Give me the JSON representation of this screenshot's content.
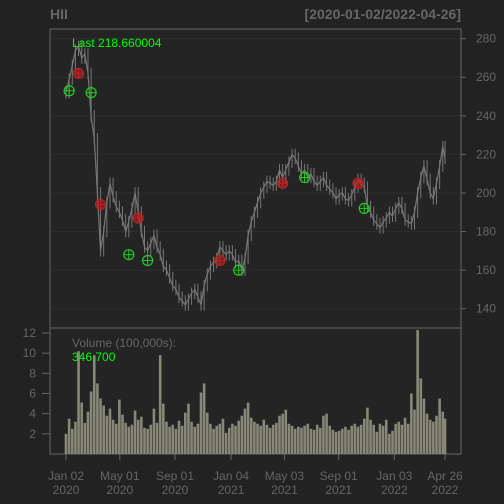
{
  "chart_data": {
    "type": "candlestick",
    "title_left": "HII",
    "title_right": "[2020-01-02/2022-04-26]",
    "last_label": "Last 218.660004",
    "volume_label": "Volume (100,000s):",
    "volume_value": "346,700",
    "price_axis": {
      "ylim": [
        130,
        285
      ],
      "ticks": [
        140,
        160,
        180,
        200,
        220,
        240,
        260,
        280
      ]
    },
    "volume_axis": {
      "ylim": [
        0,
        12.5
      ],
      "ticks": [
        2,
        4,
        6,
        8,
        10,
        12
      ]
    },
    "x_axis": {
      "ticks": [
        {
          "date": "2020-01-02",
          "label1": "Jan 02",
          "label2": "2020"
        },
        {
          "date": "2020-05-01",
          "label1": "May 01",
          "label2": "2020"
        },
        {
          "date": "2020-09-01",
          "label1": "Sep 01",
          "label2": "2020"
        },
        {
          "date": "2021-01-04",
          "label1": "Jan 04",
          "label2": "2021"
        },
        {
          "date": "2021-05-03",
          "label1": "May 03",
          "label2": "2021"
        },
        {
          "date": "2021-09-01",
          "label1": "Sep 01",
          "label2": "2021"
        },
        {
          "date": "2022-01-03",
          "label1": "Jan 03",
          "label2": "2022"
        },
        {
          "date": "2022-04-26",
          "label1": "Apr 26",
          "label2": "2022"
        }
      ]
    },
    "price_series": [
      [
        "2020-01-02",
        252
      ],
      [
        "2020-01-09",
        259
      ],
      [
        "2020-01-16",
        266
      ],
      [
        "2020-01-23",
        274
      ],
      [
        "2020-01-30",
        276
      ],
      [
        "2020-02-06",
        270
      ],
      [
        "2020-02-13",
        272
      ],
      [
        "2020-02-20",
        262
      ],
      [
        "2020-02-27",
        240
      ],
      [
        "2020-03-05",
        228
      ],
      [
        "2020-03-12",
        200
      ],
      [
        "2020-03-19",
        170
      ],
      [
        "2020-03-26",
        180
      ],
      [
        "2020-04-02",
        195
      ],
      [
        "2020-04-09",
        205
      ],
      [
        "2020-04-16",
        198
      ],
      [
        "2020-04-23",
        193
      ],
      [
        "2020-04-30",
        190
      ],
      [
        "2020-05-07",
        186
      ],
      [
        "2020-05-14",
        180
      ],
      [
        "2020-05-21",
        185
      ],
      [
        "2020-05-28",
        192
      ],
      [
        "2020-06-04",
        200
      ],
      [
        "2020-06-11",
        190
      ],
      [
        "2020-06-18",
        180
      ],
      [
        "2020-06-25",
        172
      ],
      [
        "2020-07-02",
        170
      ],
      [
        "2020-07-09",
        174
      ],
      [
        "2020-07-16",
        178
      ],
      [
        "2020-07-23",
        172
      ],
      [
        "2020-07-30",
        168
      ],
      [
        "2020-08-06",
        162
      ],
      [
        "2020-08-13",
        160
      ],
      [
        "2020-08-20",
        156
      ],
      [
        "2020-08-27",
        152
      ],
      [
        "2020-09-03",
        150
      ],
      [
        "2020-09-10",
        146
      ],
      [
        "2020-09-17",
        144
      ],
      [
        "2020-09-24",
        142
      ],
      [
        "2020-10-01",
        145
      ],
      [
        "2020-10-08",
        148
      ],
      [
        "2020-10-15",
        150
      ],
      [
        "2020-10-22",
        146
      ],
      [
        "2020-10-29",
        142
      ],
      [
        "2020-11-05",
        152
      ],
      [
        "2020-11-12",
        158
      ],
      [
        "2020-11-19",
        162
      ],
      [
        "2020-11-26",
        164
      ],
      [
        "2020-12-03",
        166
      ],
      [
        "2020-12-10",
        172
      ],
      [
        "2020-12-17",
        170
      ],
      [
        "2020-12-24",
        168
      ],
      [
        "2020-12-31",
        170
      ],
      [
        "2021-01-07",
        168
      ],
      [
        "2021-01-14",
        164
      ],
      [
        "2021-01-21",
        165
      ],
      [
        "2021-01-28",
        160
      ],
      [
        "2021-02-04",
        166
      ],
      [
        "2021-02-11",
        178
      ],
      [
        "2021-02-18",
        185
      ],
      [
        "2021-02-25",
        190
      ],
      [
        "2021-03-04",
        195
      ],
      [
        "2021-03-11",
        200
      ],
      [
        "2021-03-18",
        203
      ],
      [
        "2021-03-25",
        206
      ],
      [
        "2021-04-01",
        205
      ],
      [
        "2021-04-08",
        204
      ],
      [
        "2021-04-15",
        206
      ],
      [
        "2021-04-22",
        212
      ],
      [
        "2021-04-29",
        208
      ],
      [
        "2021-05-06",
        212
      ],
      [
        "2021-05-13",
        216
      ],
      [
        "2021-05-20",
        220
      ],
      [
        "2021-05-27",
        218
      ],
      [
        "2021-06-03",
        214
      ],
      [
        "2021-06-10",
        210
      ],
      [
        "2021-06-17",
        212
      ],
      [
        "2021-06-24",
        208
      ],
      [
        "2021-07-01",
        210
      ],
      [
        "2021-07-08",
        206
      ],
      [
        "2021-07-15",
        204
      ],
      [
        "2021-07-22",
        206
      ],
      [
        "2021-07-29",
        208
      ],
      [
        "2021-08-05",
        204
      ],
      [
        "2021-08-12",
        202
      ],
      [
        "2021-08-19",
        200
      ],
      [
        "2021-08-26",
        197
      ],
      [
        "2021-09-02",
        199
      ],
      [
        "2021-09-09",
        200
      ],
      [
        "2021-09-16",
        197
      ],
      [
        "2021-09-23",
        196
      ],
      [
        "2021-09-30",
        199
      ],
      [
        "2021-10-07",
        203
      ],
      [
        "2021-10-14",
        207
      ],
      [
        "2021-10-21",
        205
      ],
      [
        "2021-10-28",
        203
      ],
      [
        "2021-11-04",
        193
      ],
      [
        "2021-11-11",
        190
      ],
      [
        "2021-11-18",
        186
      ],
      [
        "2021-11-25",
        184
      ],
      [
        "2021-12-02",
        182
      ],
      [
        "2021-12-09",
        185
      ],
      [
        "2021-12-16",
        187
      ],
      [
        "2021-12-23",
        190
      ],
      [
        "2021-12-30",
        188
      ],
      [
        "2022-01-06",
        192
      ],
      [
        "2022-01-13",
        195
      ],
      [
        "2022-01-20",
        192
      ],
      [
        "2022-01-27",
        186
      ],
      [
        "2022-02-03",
        185
      ],
      [
        "2022-02-10",
        184
      ],
      [
        "2022-02-17",
        190
      ],
      [
        "2022-02-24",
        200
      ],
      [
        "2022-03-03",
        208
      ],
      [
        "2022-03-10",
        214
      ],
      [
        "2022-03-17",
        207
      ],
      [
        "2022-03-24",
        200
      ],
      [
        "2022-03-31",
        197
      ],
      [
        "2022-04-07",
        205
      ],
      [
        "2022-04-14",
        214
      ],
      [
        "2022-04-21",
        224
      ],
      [
        "2022-04-26",
        218
      ]
    ],
    "volume_series": [
      [
        "2020-01-02",
        2.0
      ],
      [
        "2020-01-09",
        3.5
      ],
      [
        "2020-01-16",
        2.5
      ],
      [
        "2020-01-23",
        3.2
      ],
      [
        "2020-01-30",
        10.2
      ],
      [
        "2020-02-06",
        5.1
      ],
      [
        "2020-02-13",
        3.1
      ],
      [
        "2020-02-20",
        4.2
      ],
      [
        "2020-02-27",
        6.2
      ],
      [
        "2020-03-05",
        9.8
      ],
      [
        "2020-03-12",
        7.0
      ],
      [
        "2020-03-19",
        5.5
      ],
      [
        "2020-03-26",
        4.8
      ],
      [
        "2020-04-02",
        3.8
      ],
      [
        "2020-04-09",
        4.5
      ],
      [
        "2020-04-16",
        3.4
      ],
      [
        "2020-04-23",
        3.0
      ],
      [
        "2020-04-30",
        5.4
      ],
      [
        "2020-05-07",
        3.9
      ],
      [
        "2020-05-14",
        3.1
      ],
      [
        "2020-05-21",
        2.7
      ],
      [
        "2020-05-28",
        2.9
      ],
      [
        "2020-06-04",
        4.3
      ],
      [
        "2020-06-11",
        3.4
      ],
      [
        "2020-06-18",
        3.7
      ],
      [
        "2020-06-25",
        2.6
      ],
      [
        "2020-07-02",
        2.5
      ],
      [
        "2020-07-09",
        2.9
      ],
      [
        "2020-07-16",
        4.5
      ],
      [
        "2020-07-23",
        3.1
      ],
      [
        "2020-07-30",
        9.8
      ],
      [
        "2020-08-06",
        5.0
      ],
      [
        "2020-08-13",
        3.2
      ],
      [
        "2020-08-20",
        2.7
      ],
      [
        "2020-08-27",
        2.9
      ],
      [
        "2020-09-03",
        2.5
      ],
      [
        "2020-09-10",
        3.3
      ],
      [
        "2020-09-17",
        2.8
      ],
      [
        "2020-09-24",
        4.1
      ],
      [
        "2020-10-01",
        5.0
      ],
      [
        "2020-10-08",
        3.2
      ],
      [
        "2020-10-15",
        2.7
      ],
      [
        "2020-10-22",
        3.0
      ],
      [
        "2020-10-29",
        6.1
      ],
      [
        "2020-11-05",
        7.0
      ],
      [
        "2020-11-12",
        4.1
      ],
      [
        "2020-11-19",
        3.0
      ],
      [
        "2020-11-26",
        2.5
      ],
      [
        "2020-12-03",
        2.8
      ],
      [
        "2020-12-10",
        3.0
      ],
      [
        "2020-12-17",
        3.5
      ],
      [
        "2020-12-24",
        2.1
      ],
      [
        "2020-12-31",
        2.6
      ],
      [
        "2021-01-07",
        3.0
      ],
      [
        "2021-01-14",
        2.8
      ],
      [
        "2021-01-21",
        3.3
      ],
      [
        "2021-01-28",
        3.8
      ],
      [
        "2021-02-04",
        4.5
      ],
      [
        "2021-02-11",
        5.1
      ],
      [
        "2021-02-18",
        3.6
      ],
      [
        "2021-02-25",
        3.2
      ],
      [
        "2021-03-04",
        3.0
      ],
      [
        "2021-03-11",
        2.8
      ],
      [
        "2021-03-18",
        3.4
      ],
      [
        "2021-03-25",
        2.9
      ],
      [
        "2021-04-01",
        2.6
      ],
      [
        "2021-04-08",
        2.9
      ],
      [
        "2021-04-15",
        3.1
      ],
      [
        "2021-04-22",
        3.8
      ],
      [
        "2021-04-29",
        4.0
      ],
      [
        "2021-05-06",
        4.4
      ],
      [
        "2021-05-13",
        3.0
      ],
      [
        "2021-05-20",
        2.8
      ],
      [
        "2021-05-27",
        2.5
      ],
      [
        "2021-06-03",
        2.7
      ],
      [
        "2021-06-10",
        2.6
      ],
      [
        "2021-06-17",
        2.8
      ],
      [
        "2021-06-24",
        3.0
      ],
      [
        "2021-07-01",
        2.5
      ],
      [
        "2021-07-08",
        2.4
      ],
      [
        "2021-07-15",
        2.9
      ],
      [
        "2021-07-22",
        2.6
      ],
      [
        "2021-07-29",
        3.8
      ],
      [
        "2021-08-05",
        4.0
      ],
      [
        "2021-08-12",
        2.8
      ],
      [
        "2021-08-19",
        2.4
      ],
      [
        "2021-08-26",
        2.2
      ],
      [
        "2021-09-02",
        2.3
      ],
      [
        "2021-09-09",
        2.5
      ],
      [
        "2021-09-16",
        2.7
      ],
      [
        "2021-09-23",
        2.4
      ],
      [
        "2021-09-30",
        2.8
      ],
      [
        "2021-10-07",
        3.0
      ],
      [
        "2021-10-14",
        2.7
      ],
      [
        "2021-10-21",
        2.9
      ],
      [
        "2021-10-28",
        3.5
      ],
      [
        "2021-11-04",
        4.6
      ],
      [
        "2021-11-11",
        3.4
      ],
      [
        "2021-11-18",
        2.9
      ],
      [
        "2021-11-25",
        2.2
      ],
      [
        "2021-12-02",
        3.0
      ],
      [
        "2021-12-09",
        2.8
      ],
      [
        "2021-12-16",
        3.4
      ],
      [
        "2021-12-23",
        2.0
      ],
      [
        "2021-12-30",
        2.3
      ],
      [
        "2022-01-06",
        3.0
      ],
      [
        "2022-01-13",
        3.2
      ],
      [
        "2022-01-20",
        2.9
      ],
      [
        "2022-01-27",
        3.6
      ],
      [
        "2022-02-03",
        3.0
      ],
      [
        "2022-02-10",
        6.0
      ],
      [
        "2022-02-17",
        4.4
      ],
      [
        "2022-02-24",
        12.3
      ],
      [
        "2022-03-03",
        7.5
      ],
      [
        "2022-03-10",
        5.5
      ],
      [
        "2022-03-17",
        4.0
      ],
      [
        "2022-03-24",
        3.4
      ],
      [
        "2022-03-31",
        3.2
      ],
      [
        "2022-04-07",
        3.8
      ],
      [
        "2022-04-14",
        5.5
      ],
      [
        "2022-04-21",
        4.2
      ],
      [
        "2022-04-26",
        3.5
      ]
    ],
    "signals": [
      {
        "date": "2020-01-09",
        "value": 253,
        "kind": "buy"
      },
      {
        "date": "2020-01-30",
        "value": 262,
        "kind": "sell"
      },
      {
        "date": "2020-02-27",
        "value": 252,
        "kind": "buy"
      },
      {
        "date": "2020-03-19",
        "value": 194,
        "kind": "sell"
      },
      {
        "date": "2020-05-21",
        "value": 168,
        "kind": "buy"
      },
      {
        "date": "2020-06-11",
        "value": 187,
        "kind": "sell"
      },
      {
        "date": "2020-07-02",
        "value": 165,
        "kind": "buy"
      },
      {
        "date": "2020-12-10",
        "value": 165,
        "kind": "sell"
      },
      {
        "date": "2021-01-21",
        "value": 160,
        "kind": "buy"
      },
      {
        "date": "2021-04-29",
        "value": 205,
        "kind": "sell"
      },
      {
        "date": "2021-06-17",
        "value": 208,
        "kind": "buy"
      },
      {
        "date": "2021-10-14",
        "value": 205,
        "kind": "sell"
      },
      {
        "date": "2021-10-28",
        "value": 192,
        "kind": "buy"
      }
    ],
    "colors": {
      "background": "#222222",
      "panel_border": "#666666",
      "grid": "#2d2d2d",
      "axis_text": "#666666",
      "title_text": "#666666",
      "price": "#777777",
      "volume": "#888878",
      "accent": "#00ff00",
      "buy": "#22cc22",
      "sell": "#bb2222"
    }
  }
}
